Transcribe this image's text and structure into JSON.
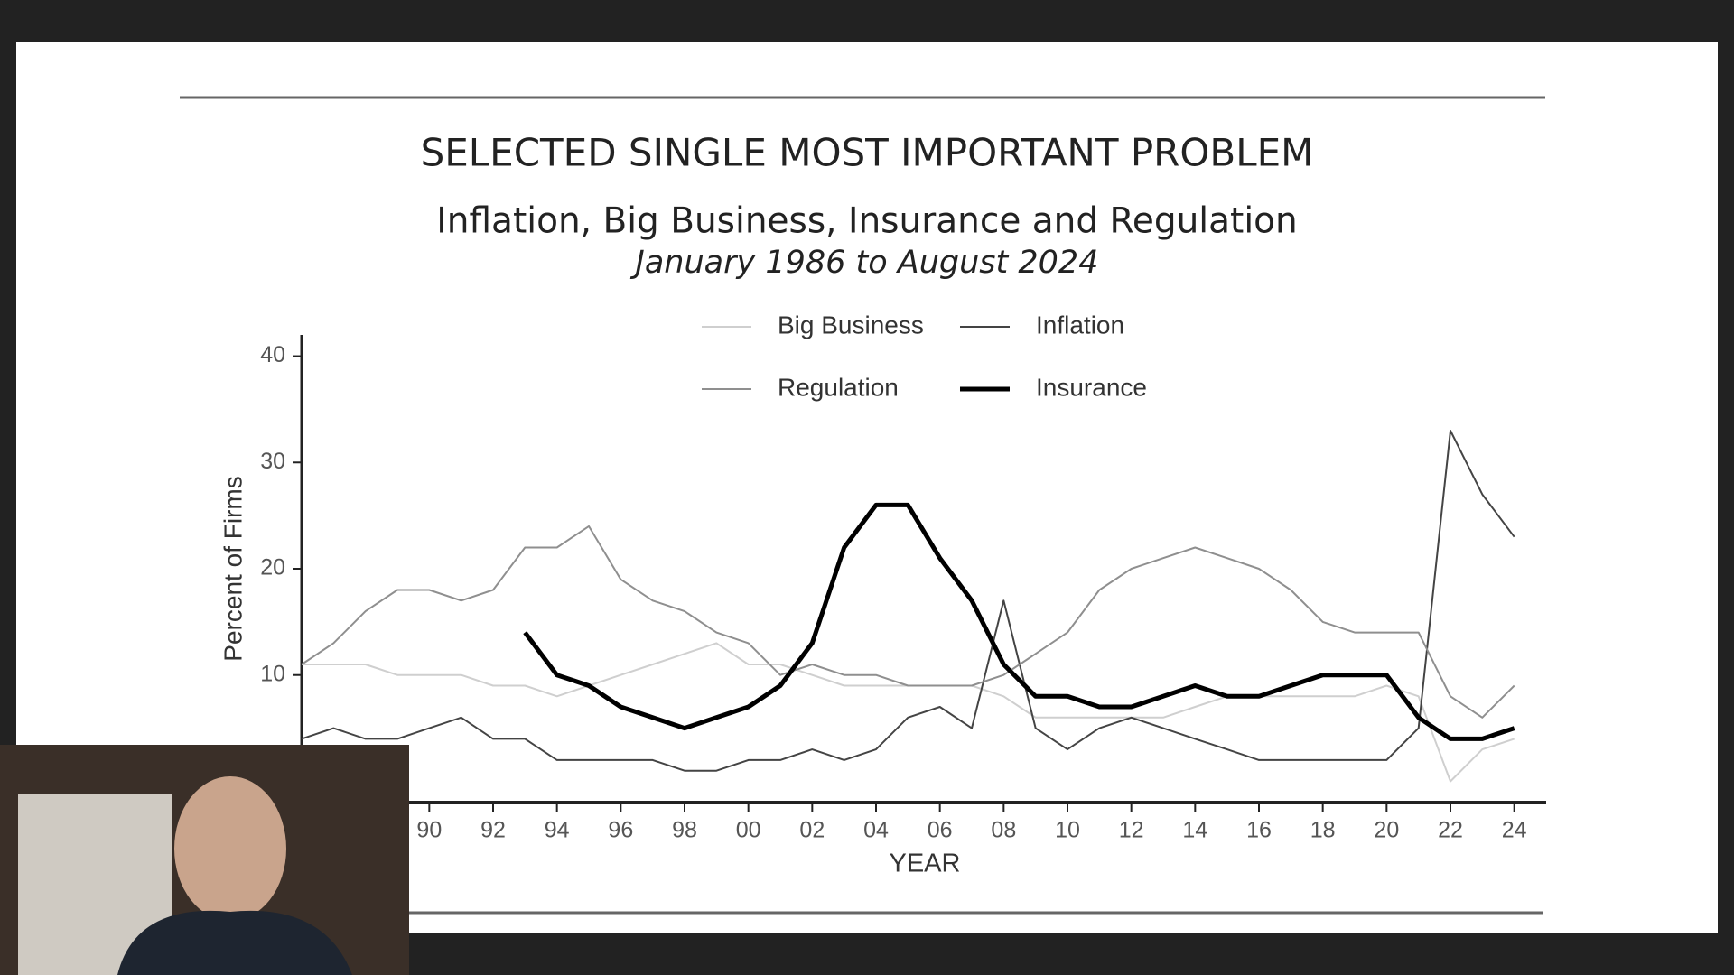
{
  "chart_data": {
    "type": "line",
    "title": "SELECTED SINGLE MOST IMPORTANT PROBLEM",
    "subtitle": "Inflation, Big Business, Insurance and Regulation",
    "date_range": "January 1986 to August 2024",
    "x_label": "YEAR",
    "y_label": "Percent of Firms",
    "legend": "top",
    "x": [
      1986,
      1987,
      1988,
      1989,
      1990,
      1991,
      1992,
      1993,
      1994,
      1995,
      1996,
      1997,
      1998,
      1999,
      2000,
      2001,
      2002,
      2003,
      2004,
      2005,
      2006,
      2007,
      2008,
      2009,
      2010,
      2011,
      2012,
      2013,
      2014,
      2015,
      2016,
      2017,
      2018,
      2019,
      2020,
      2021,
      2022,
      2023,
      2024
    ],
    "series": [
      {
        "name": "Big Business",
        "color": "#cfcfcf",
        "line_width": 2,
        "values": [
          11,
          11,
          11,
          10,
          10,
          10,
          9,
          9,
          8,
          9,
          10,
          11,
          12,
          13,
          11,
          11,
          10,
          9,
          9,
          9,
          9,
          9,
          8,
          6,
          6,
          6,
          6,
          6,
          7,
          8,
          8,
          8,
          8,
          8,
          9,
          8,
          0,
          3,
          4
        ]
      },
      {
        "name": "Inflation",
        "color": "#444444",
        "line_width": 2,
        "values": [
          4,
          5,
          4,
          4,
          5,
          6,
          4,
          4,
          2,
          2,
          2,
          2,
          1,
          1,
          2,
          2,
          3,
          2,
          3,
          6,
          7,
          5,
          17,
          5,
          3,
          5,
          6,
          5,
          4,
          3,
          2,
          2,
          2,
          2,
          2,
          5,
          33,
          27,
          23
        ]
      },
      {
        "name": "Regulation",
        "color": "#8f8f8f",
        "line_width": 2,
        "values": [
          11,
          13,
          16,
          18,
          18,
          17,
          18,
          22,
          22,
          24,
          19,
          17,
          16,
          14,
          13,
          10,
          11,
          10,
          10,
          9,
          9,
          9,
          10,
          12,
          14,
          18,
          20,
          21,
          22,
          21,
          20,
          18,
          15,
          14,
          14,
          14,
          8,
          6,
          9
        ]
      },
      {
        "name": "Insurance",
        "color": "#000000",
        "line_width": 5,
        "values": [
          null,
          null,
          null,
          null,
          null,
          null,
          null,
          14,
          10,
          9,
          7,
          6,
          5,
          6,
          7,
          9,
          13,
          22,
          26,
          26,
          21,
          17,
          11,
          8,
          8,
          7,
          7,
          8,
          9,
          8,
          8,
          9,
          10,
          10,
          10,
          6,
          4,
          4,
          5
        ]
      }
    ],
    "xlim": [
      1986,
      2025
    ],
    "xticks": [
      {
        "value": 1990,
        "label": "90"
      },
      {
        "value": 1992,
        "label": "92"
      },
      {
        "value": 1994,
        "label": "94"
      },
      {
        "value": 1996,
        "label": "96"
      },
      {
        "value": 1998,
        "label": "98"
      },
      {
        "value": 2000,
        "label": "00"
      },
      {
        "value": 2002,
        "label": "02"
      },
      {
        "value": 2004,
        "label": "04"
      },
      {
        "value": 2006,
        "label": "06"
      },
      {
        "value": 2008,
        "label": "08"
      },
      {
        "value": 2010,
        "label": "10"
      },
      {
        "value": 2012,
        "label": "12"
      },
      {
        "value": 2014,
        "label": "14"
      },
      {
        "value": 2016,
        "label": "16"
      },
      {
        "value": 2018,
        "label": "18"
      },
      {
        "value": 2020,
        "label": "20"
      },
      {
        "value": 2022,
        "label": "22"
      },
      {
        "value": 2024,
        "label": "24"
      }
    ],
    "ylim": [
      -2,
      42
    ],
    "yticks": [
      10,
      20,
      30,
      40
    ]
  }
}
